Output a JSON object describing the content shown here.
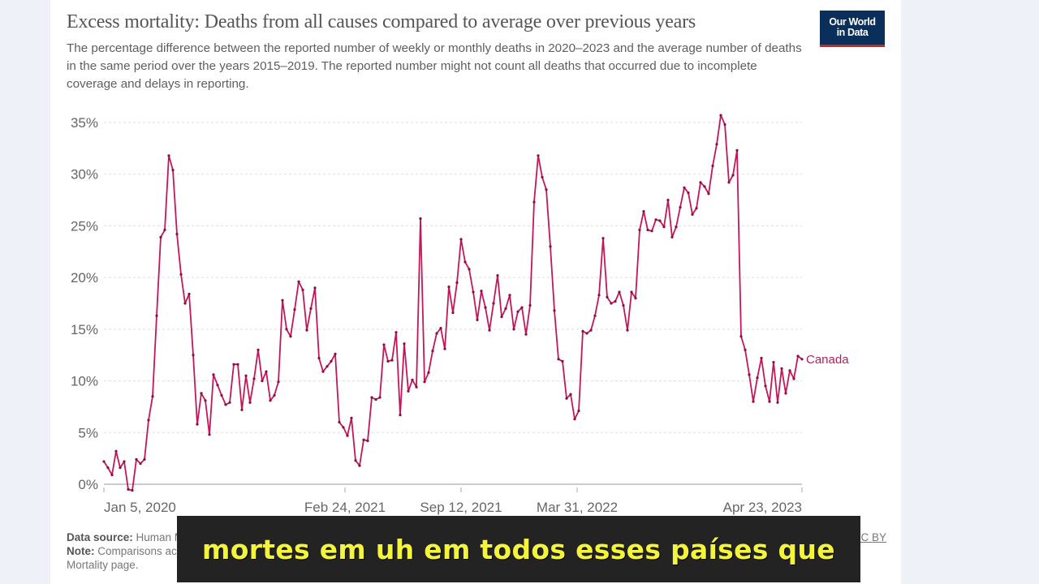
{
  "header": {
    "title": "Excess mortality: Deaths from all causes compared to average over previous years",
    "subtitle": "The percentage difference between the reported number of weekly or monthly deaths in 2020–2023 and the average number of deaths in the same period over the years 2015–2019. The reported number might not count all deaths that occurred due to incomplete coverage and delays in reporting.",
    "logo_line1": "Our World",
    "logo_line2": "in Data"
  },
  "footer": {
    "source_label": "Data source:",
    "source_text": "Human Mortality Database (2023); World Mortality Dataset (2023)",
    "source_right": "OurWorldInData.org/excess-deaths | CC BY",
    "note_label": "Note:",
    "note_text": "Comparisons across countries are affected by differences in reporting. For more info see Excess",
    "note_line2": "Mortality page."
  },
  "caption": {
    "text": "mortes em uh em todos esses países que"
  },
  "colors": {
    "series": "#c2185b",
    "grid": "#dddddd",
    "axis": "#cccccc",
    "logo_bg": "#0b2f5b",
    "logo_accent": "#ce261e"
  },
  "chart_data": {
    "type": "line",
    "title": "Excess mortality: Deaths from all causes compared to average over previous years",
    "xlabel": "",
    "ylabel": "",
    "ylim": [
      0,
      35
    ],
    "y_ticks": [
      "0%",
      "5%",
      "10%",
      "15%",
      "20%",
      "25%",
      "30%",
      "35%"
    ],
    "x_ticks": [
      "Jan 5, 2020",
      "Feb 24, 2021",
      "Sep 12, 2021",
      "Mar 31, 2022",
      "Apr 23, 2023"
    ],
    "grid": true,
    "legend_position": "end-of-line label",
    "series": [
      {
        "name": "Canada",
        "x_start": "Jan 5, 2020",
        "x_end": "Apr 23, 2023",
        "frequency": "weekly",
        "values": [
          2.2,
          1.6,
          0.9,
          3.2,
          1.6,
          2.2,
          -0.5,
          -0.6,
          2.4,
          2.0,
          2.4,
          6.2,
          8.5,
          16.3,
          23.9,
          24.6,
          31.8,
          30.4,
          24.2,
          20.3,
          17.5,
          18.4,
          12.5,
          5.8,
          8.8,
          8.1,
          4.8,
          10.6,
          9.6,
          8.6,
          7.7,
          7.9,
          11.6,
          11.6,
          7.2,
          10.5,
          7.9,
          10.2,
          13.0,
          10.0,
          10.9,
          8.1,
          8.6,
          9.9,
          17.8,
          15.0,
          14.3,
          16.9,
          19.6,
          18.8,
          14.9,
          17.0,
          19.0,
          12.2,
          10.9,
          11.4,
          11.9,
          12.6,
          6.0,
          5.5,
          4.7,
          6.4,
          2.3,
          1.8,
          4.3,
          4.2,
          8.4,
          8.2,
          8.4,
          13.5,
          11.9,
          12.0,
          14.7,
          6.7,
          13.6,
          9.0,
          10.1,
          9.4,
          25.7,
          9.9,
          10.8,
          12.9,
          14.6,
          15.1,
          13.1,
          19.1,
          16.6,
          19.5,
          23.7,
          21.5,
          20.8,
          18.6,
          15.9,
          18.7,
          17.1,
          14.9,
          17.5,
          20.2,
          16.2,
          17.0,
          18.3,
          15.0,
          16.7,
          17.1,
          14.5,
          17.3,
          27.3,
          31.8,
          29.7,
          28.5,
          23.0,
          16.8,
          12.1,
          11.9,
          8.3,
          8.7,
          6.3,
          7.1,
          14.8,
          14.6,
          14.9,
          16.3,
          18.3,
          23.8,
          18.1,
          17.5,
          17.7,
          18.6,
          17.3,
          14.9,
          18.6,
          18.0,
          24.6,
          26.4,
          24.6,
          24.5,
          25.6,
          25.5,
          24.9,
          27.5,
          23.9,
          24.9,
          26.8,
          28.7,
          28.2,
          26.1,
          26.7,
          29.2,
          28.8,
          28.1,
          30.8,
          32.9,
          35.7,
          34.8,
          29.2,
          29.9,
          32.3,
          14.3,
          13.0,
          10.6,
          8.0,
          10.3,
          12.2,
          9.5,
          8.0,
          11.8,
          7.9,
          11.2,
          8.8,
          11.0,
          10.2,
          12.4,
          12.1
        ]
      }
    ]
  }
}
